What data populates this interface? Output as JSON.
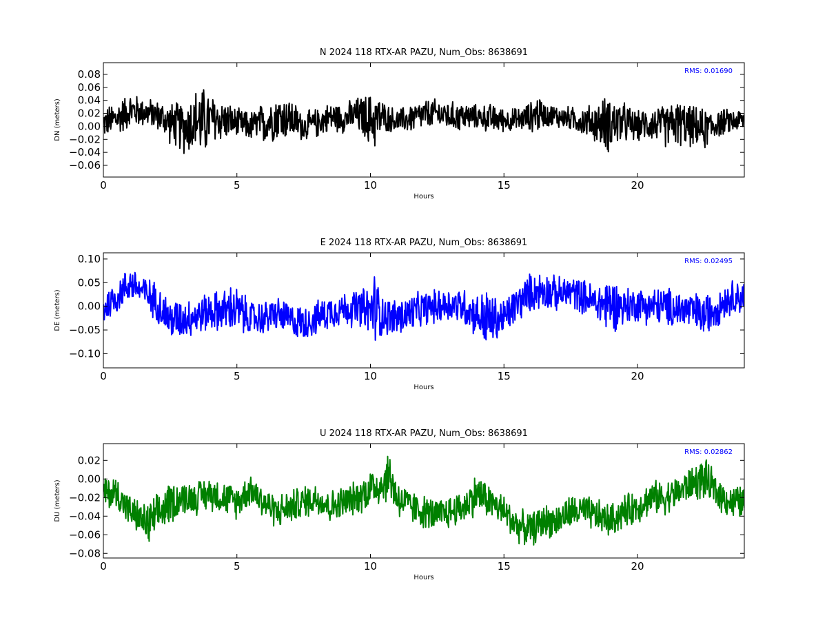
{
  "chart_data": [
    {
      "type": "line",
      "title": "N 2024 118 RTX-AR  PAZU, Num_Obs: 8638691",
      "xlabel": "Hours",
      "ylabel": "DN (meters)",
      "xlim": [
        0,
        24
      ],
      "ylim": [
        -0.078,
        0.098
      ],
      "xticks": [
        "0",
        "5",
        "10",
        "15",
        "20"
      ],
      "yticks": [
        "−0.06",
        "−0.04",
        "−0.02",
        "0.00",
        "0.02",
        "0.04",
        "0.06",
        "0.08"
      ],
      "ytick_values": [
        -0.06,
        -0.04,
        -0.02,
        0.0,
        0.02,
        0.04,
        0.06,
        0.08
      ],
      "annotation": "RMS:  0.01690",
      "annotation_color": "#0000ff",
      "series": [
        {
          "color": "#000000",
          "x": [
            0,
            0.5,
            1.0,
            1.5,
            2.0,
            2.5,
            3.0,
            3.5,
            3.7,
            4.0,
            4.5,
            5.0,
            5.5,
            6.0,
            6.5,
            7.0,
            7.5,
            8.0,
            8.5,
            9.0,
            9.5,
            10.0,
            10.2,
            10.5,
            11.0,
            11.5,
            12.0,
            12.5,
            13.0,
            13.5,
            14.0,
            14.5,
            15.0,
            15.5,
            16.0,
            16.3,
            16.5,
            17.0,
            17.5,
            18.0,
            18.5,
            18.9,
            19.5,
            20.0,
            20.5,
            21.0,
            21.5,
            22.0,
            22.5,
            23.0,
            23.5,
            24.0
          ],
          "center": [
            0.005,
            0.012,
            0.025,
            0.022,
            0.018,
            0.005,
            -0.002,
            0.01,
            0.005,
            0.01,
            0.01,
            0.005,
            0.0,
            0.005,
            0.015,
            0.012,
            0.0,
            0.005,
            0.015,
            0.012,
            0.018,
            0.01,
            0.01,
            0.015,
            0.008,
            0.012,
            0.018,
            0.02,
            0.015,
            0.015,
            0.015,
            0.012,
            0.01,
            0.01,
            0.015,
            0.02,
            0.018,
            0.015,
            0.012,
            0.008,
            0.005,
            0.005,
            0.005,
            0.0,
            0.005,
            0.0,
            0.005,
            0.0,
            -0.005,
            0.005,
            0.008,
            0.01
          ],
          "amp": [
            0.025,
            0.03,
            0.03,
            0.025,
            0.025,
            0.035,
            0.045,
            0.055,
            0.065,
            0.045,
            0.035,
            0.025,
            0.025,
            0.035,
            0.04,
            0.035,
            0.025,
            0.025,
            0.025,
            0.025,
            0.03,
            0.045,
            0.05,
            0.025,
            0.02,
            0.025,
            0.025,
            0.025,
            0.025,
            0.025,
            0.02,
            0.025,
            0.02,
            0.02,
            0.025,
            0.035,
            0.02,
            0.02,
            0.02,
            0.025,
            0.035,
            0.05,
            0.035,
            0.025,
            0.03,
            0.035,
            0.04,
            0.035,
            0.035,
            0.025,
            0.02,
            0.02
          ]
        }
      ]
    },
    {
      "type": "line",
      "title": "E 2024 118 RTX-AR  PAZU, Num_Obs: 8638691",
      "xlabel": "Hours",
      "ylabel": "DE (meters)",
      "xlim": [
        0,
        24
      ],
      "ylim": [
        -0.13,
        0.113
      ],
      "xticks": [
        "0",
        "5",
        "10",
        "15",
        "20"
      ],
      "yticks": [
        "−0.10",
        "−0.05",
        "0.00",
        "0.05",
        "0.10"
      ],
      "ytick_values": [
        -0.1,
        -0.05,
        0.0,
        0.05,
        0.1
      ],
      "annotation": "RMS:  0.02495",
      "annotation_color": "#0000ff",
      "series": [
        {
          "color": "#0000ff",
          "x": [
            0,
            0.5,
            1.0,
            1.5,
            2.0,
            2.5,
            3.0,
            3.5,
            4.0,
            4.5,
            4.9,
            5.5,
            6.0,
            6.5,
            7.0,
            7.5,
            8.0,
            8.5,
            9.0,
            9.5,
            10.0,
            10.1,
            10.5,
            11.0,
            11.5,
            12.0,
            12.5,
            13.0,
            13.5,
            14.0,
            14.4,
            14.5,
            15.0,
            15.5,
            16.0,
            16.5,
            17.0,
            17.5,
            18.0,
            18.5,
            18.9,
            19.5,
            20.0,
            20.5,
            21.0,
            21.5,
            22.0,
            22.5,
            23.0,
            23.5,
            24.0
          ],
          "center": [
            -0.005,
            0.02,
            0.05,
            0.03,
            0.01,
            -0.03,
            -0.025,
            -0.02,
            -0.01,
            -0.01,
            -0.005,
            -0.025,
            -0.025,
            -0.015,
            -0.03,
            -0.035,
            -0.025,
            -0.01,
            -0.005,
            -0.005,
            -0.01,
            0.0,
            -0.02,
            -0.025,
            -0.015,
            -0.005,
            0.0,
            0.005,
            0.0,
            -0.02,
            -0.03,
            -0.03,
            -0.025,
            0.005,
            0.03,
            0.035,
            0.025,
            0.03,
            0.02,
            0.005,
            0.005,
            0.0,
            0.005,
            0.0,
            0.0,
            -0.005,
            -0.01,
            -0.02,
            0.0,
            0.02,
            0.02
          ],
          "amp": [
            0.04,
            0.04,
            0.04,
            0.04,
            0.045,
            0.05,
            0.045,
            0.045,
            0.045,
            0.05,
            0.06,
            0.04,
            0.04,
            0.04,
            0.04,
            0.04,
            0.04,
            0.04,
            0.04,
            0.045,
            0.06,
            0.09,
            0.045,
            0.045,
            0.045,
            0.04,
            0.04,
            0.04,
            0.045,
            0.05,
            0.08,
            0.06,
            0.045,
            0.045,
            0.045,
            0.045,
            0.04,
            0.04,
            0.04,
            0.045,
            0.07,
            0.045,
            0.04,
            0.045,
            0.045,
            0.045,
            0.045,
            0.05,
            0.045,
            0.04,
            0.04
          ]
        }
      ]
    },
    {
      "type": "line",
      "title": "U 2024 118 RTX-AR  PAZU, Num_Obs: 8638691",
      "xlabel": "Hours",
      "ylabel": "DU (meters)",
      "xlim": [
        0,
        24
      ],
      "ylim": [
        -0.085,
        0.038
      ],
      "xticks": [
        "0",
        "5",
        "10",
        "15",
        "20"
      ],
      "yticks": [
        "−0.08",
        "−0.06",
        "−0.04",
        "−0.02",
        "0.00",
        "0.02"
      ],
      "ytick_values": [
        -0.08,
        -0.06,
        -0.04,
        -0.02,
        0.0,
        0.02
      ],
      "annotation": "RMS:  0.02862",
      "annotation_color": "#0000ff",
      "series": [
        {
          "color": "#008000",
          "x": [
            0,
            0.5,
            1.0,
            1.5,
            1.7,
            2.0,
            2.5,
            3.0,
            3.5,
            4.0,
            4.5,
            5.0,
            5.5,
            6.0,
            6.5,
            7.0,
            7.5,
            8.0,
            8.5,
            9.0,
            9.5,
            10.0,
            10.5,
            10.7,
            11.0,
            11.5,
            12.0,
            12.5,
            13.0,
            13.5,
            14.0,
            14.5,
            15.0,
            15.5,
            16.0,
            16.5,
            17.0,
            17.5,
            18.0,
            18.5,
            19.0,
            19.5,
            20.0,
            20.5,
            21.0,
            21.5,
            22.0,
            22.5,
            23.0,
            23.5,
            24.0
          ],
          "center": [
            -0.015,
            -0.015,
            -0.035,
            -0.045,
            -0.05,
            -0.04,
            -0.025,
            -0.02,
            -0.02,
            -0.015,
            -0.02,
            -0.025,
            -0.01,
            -0.025,
            -0.035,
            -0.03,
            -0.025,
            -0.02,
            -0.03,
            -0.025,
            -0.02,
            -0.01,
            -0.005,
            0.005,
            -0.02,
            -0.03,
            -0.035,
            -0.04,
            -0.035,
            -0.03,
            -0.015,
            -0.025,
            -0.035,
            -0.05,
            -0.055,
            -0.045,
            -0.045,
            -0.035,
            -0.035,
            -0.04,
            -0.045,
            -0.035,
            -0.03,
            -0.02,
            -0.02,
            -0.015,
            -0.005,
            0.0,
            -0.015,
            -0.025,
            -0.025
          ],
          "amp": [
            0.02,
            0.02,
            0.02,
            0.02,
            0.03,
            0.025,
            0.025,
            0.02,
            0.02,
            0.02,
            0.02,
            0.02,
            0.02,
            0.02,
            0.02,
            0.02,
            0.02,
            0.02,
            0.02,
            0.02,
            0.02,
            0.025,
            0.025,
            0.03,
            0.025,
            0.02,
            0.02,
            0.02,
            0.02,
            0.02,
            0.025,
            0.02,
            0.02,
            0.02,
            0.02,
            0.02,
            0.02,
            0.02,
            0.02,
            0.02,
            0.02,
            0.02,
            0.02,
            0.02,
            0.02,
            0.02,
            0.02,
            0.025,
            0.02,
            0.02,
            0.02
          ]
        }
      ]
    }
  ]
}
